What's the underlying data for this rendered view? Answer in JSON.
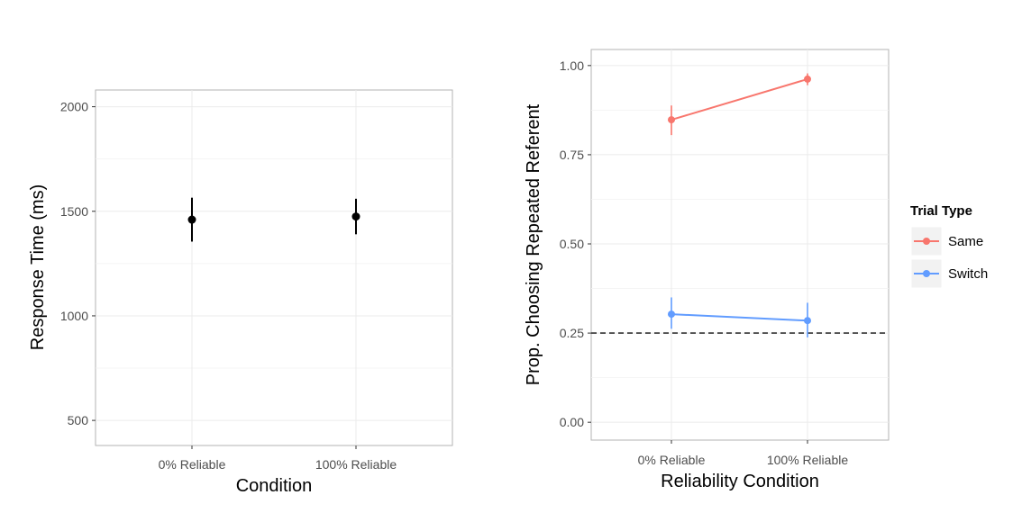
{
  "chart_data": [
    {
      "type": "scatter",
      "title": "",
      "xlabel": "Condition",
      "ylabel": "Response Time (ms)",
      "categories": [
        "0% Reliable",
        "100% Reliable"
      ],
      "ylim": [
        380,
        2080
      ],
      "yticks": [
        500,
        1000,
        1500,
        2000
      ],
      "grid": true,
      "series": [
        {
          "color": "#000000",
          "values": [
            1460,
            1475
          ],
          "ci_low": [
            1355,
            1390
          ],
          "ci_high": [
            1565,
            1560
          ]
        }
      ]
    },
    {
      "type": "line",
      "title": "",
      "xlabel": "Reliability Condition",
      "ylabel": "Prop. Choosing Repeated Referent",
      "categories": [
        "0% Reliable",
        "100% Reliable"
      ],
      "ylim": [
        -0.05,
        1.045
      ],
      "yticks": [
        "0.00",
        "0.25",
        "0.50",
        "0.75",
        "1.00"
      ],
      "grid": true,
      "reference_line": {
        "y": 0.25,
        "style": "dashed"
      },
      "legend": {
        "title": "Trial Type",
        "position": "right"
      },
      "series": [
        {
          "name": "Same",
          "color": "#f8766d",
          "values": [
            0.848,
            0.962
          ],
          "ci_low": [
            0.805,
            0.945
          ],
          "ci_high": [
            0.888,
            0.978
          ]
        },
        {
          "name": "Switch",
          "color": "#619cff",
          "values": [
            0.303,
            0.285
          ],
          "ci_low": [
            0.262,
            0.238
          ],
          "ci_high": [
            0.35,
            0.335
          ]
        }
      ]
    }
  ]
}
